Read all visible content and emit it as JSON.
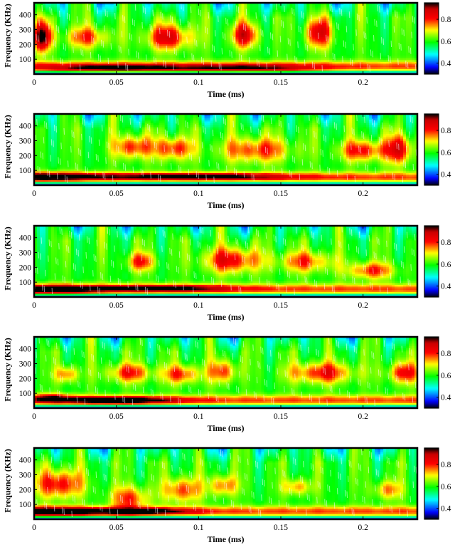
{
  "chart_data": [
    {
      "type": "heatmap",
      "panel": 1,
      "xlabel": "Time (ms)",
      "ylabel": "Frequency (KHz)",
      "xlim": [
        0,
        0.233
      ],
      "ylim": [
        0,
        480
      ],
      "xticks": [
        "0",
        "0.05",
        "0.1",
        "0.15",
        "0.2"
      ],
      "xtick_values": [
        0,
        0.05,
        0.1,
        0.15,
        0.2
      ],
      "yticks": [
        "100",
        "200",
        "300",
        "400"
      ],
      "ytick_values": [
        100,
        200,
        300,
        400
      ],
      "colorbar": {
        "ticks": [
          "0.4",
          "0.6",
          "0.8"
        ],
        "tick_values": [
          0.4,
          0.6,
          0.8
        ],
        "range": [
          0.3,
          0.95
        ]
      },
      "blobs": [
        {
          "t": 0.005,
          "f": 255,
          "st": 0.004,
          "sf": 70,
          "a": 0.34
        },
        {
          "t": 0.05,
          "f": 40,
          "st": 0.03,
          "sf": 18,
          "a": 0.25
        },
        {
          "t": 0.13,
          "f": 40,
          "st": 0.03,
          "sf": 18,
          "a": 0.2
        },
        {
          "t": 0.082,
          "f": 250,
          "st": 0.01,
          "sf": 60,
          "a": 0.25
        },
        {
          "t": 0.128,
          "f": 265,
          "st": 0.006,
          "sf": 60,
          "a": 0.25
        },
        {
          "t": 0.173,
          "f": 280,
          "st": 0.006,
          "sf": 70,
          "a": 0.25
        },
        {
          "t": 0.032,
          "f": 250,
          "st": 0.01,
          "sf": 50,
          "a": 0.18
        }
      ]
    },
    {
      "type": "heatmap",
      "panel": 2,
      "xlabel": "Time (ms)",
      "ylabel": "Frequency (KHz)",
      "xlim": [
        0,
        0.233
      ],
      "ylim": [
        0,
        480
      ],
      "xticks": [
        "0",
        "0.05",
        "0.1",
        "0.15",
        "0.2"
      ],
      "xtick_values": [
        0,
        0.05,
        0.1,
        0.15,
        0.2
      ],
      "yticks": [
        "100",
        "200",
        "300",
        "400"
      ],
      "ytick_values": [
        100,
        200,
        300,
        400
      ],
      "colorbar": {
        "ticks": [
          "0.4",
          "0.6",
          "0.8"
        ],
        "tick_values": [
          0.4,
          0.6,
          0.8
        ],
        "range": [
          0.3,
          0.95
        ]
      },
      "blobs": [
        {
          "t": 0.008,
          "f": 60,
          "st": 0.02,
          "sf": 18,
          "a": 0.3
        },
        {
          "t": 0.095,
          "f": 60,
          "st": 0.04,
          "sf": 15,
          "a": 0.25
        },
        {
          "t": 0.06,
          "f": 260,
          "st": 0.008,
          "sf": 55,
          "a": 0.22
        },
        {
          "t": 0.085,
          "f": 250,
          "st": 0.008,
          "sf": 55,
          "a": 0.22
        },
        {
          "t": 0.135,
          "f": 240,
          "st": 0.015,
          "sf": 60,
          "a": 0.2
        },
        {
          "t": 0.2,
          "f": 235,
          "st": 0.01,
          "sf": 50,
          "a": 0.22
        },
        {
          "t": 0.222,
          "f": 245,
          "st": 0.006,
          "sf": 70,
          "a": 0.24
        }
      ]
    },
    {
      "type": "heatmap",
      "panel": 3,
      "xlabel": "Time (ms)",
      "ylabel": "Frequency (KHz)",
      "xlim": [
        0,
        0.233
      ],
      "ylim": [
        0,
        480
      ],
      "xticks": [
        "0",
        "0.05",
        "0.1",
        "0.15",
        "0.2"
      ],
      "xtick_values": [
        0,
        0.05,
        0.1,
        0.15,
        0.2
      ],
      "yticks": [
        "100",
        "200",
        "300",
        "400"
      ],
      "ytick_values": [
        100,
        200,
        300,
        400
      ],
      "colorbar": {
        "ticks": [
          "0.4",
          "0.6",
          "0.8"
        ],
        "tick_values": [
          0.4,
          0.6,
          0.8
        ],
        "range": [
          0.3,
          0.95
        ]
      },
      "blobs": [
        {
          "t": 0.01,
          "f": 55,
          "st": 0.02,
          "sf": 20,
          "a": 0.3
        },
        {
          "t": 0.075,
          "f": 60,
          "st": 0.03,
          "sf": 16,
          "a": 0.25
        },
        {
          "t": 0.065,
          "f": 240,
          "st": 0.006,
          "sf": 45,
          "a": 0.2
        },
        {
          "t": 0.12,
          "f": 250,
          "st": 0.012,
          "sf": 60,
          "a": 0.24
        },
        {
          "t": 0.165,
          "f": 240,
          "st": 0.012,
          "sf": 50,
          "a": 0.18
        },
        {
          "t": 0.205,
          "f": 180,
          "st": 0.01,
          "sf": 40,
          "a": 0.2
        }
      ]
    },
    {
      "type": "heatmap",
      "panel": 4,
      "xlabel": "Time (ms)",
      "ylabel": "Frequency (KHz)",
      "xlim": [
        0,
        0.233
      ],
      "ylim": [
        0,
        480
      ],
      "xticks": [
        "0",
        "0.05",
        "0.1",
        "0.15",
        "0.2"
      ],
      "xtick_values": [
        0,
        0.05,
        0.1,
        0.15,
        0.2
      ],
      "yticks": [
        "100",
        "200",
        "300",
        "400"
      ],
      "ytick_values": [
        100,
        200,
        300,
        400
      ],
      "colorbar": {
        "ticks": [
          "0.4",
          "0.6",
          "0.8"
        ],
        "tick_values": [
          0.4,
          0.6,
          0.8
        ],
        "range": [
          0.3,
          0.95
        ]
      },
      "blobs": [
        {
          "t": 0.05,
          "f": 55,
          "st": 0.025,
          "sf": 16,
          "a": 0.3
        },
        {
          "t": 0.01,
          "f": 70,
          "st": 0.01,
          "sf": 20,
          "a": 0.2
        },
        {
          "t": 0.02,
          "f": 230,
          "st": 0.005,
          "sf": 40,
          "a": 0.18
        },
        {
          "t": 0.058,
          "f": 240,
          "st": 0.01,
          "sf": 45,
          "a": 0.2
        },
        {
          "t": 0.09,
          "f": 230,
          "st": 0.008,
          "sf": 45,
          "a": 0.2
        },
        {
          "t": 0.115,
          "f": 250,
          "st": 0.006,
          "sf": 55,
          "a": 0.2
        },
        {
          "t": 0.175,
          "f": 240,
          "st": 0.014,
          "sf": 50,
          "a": 0.22
        },
        {
          "t": 0.225,
          "f": 240,
          "st": 0.007,
          "sf": 50,
          "a": 0.22
        }
      ]
    },
    {
      "type": "heatmap",
      "panel": 5,
      "xlabel": "Time (ms)",
      "ylabel": "Frequency (KHz)",
      "xlim": [
        0,
        0.233
      ],
      "ylim": [
        0,
        480
      ],
      "xticks": [
        "0",
        "0.05",
        "0.1",
        "0.15",
        "0.2"
      ],
      "xtick_values": [
        0,
        0.05,
        0.1,
        0.15,
        0.2
      ],
      "yticks": [
        "100",
        "200",
        "300",
        "400"
      ],
      "ytick_values": [
        100,
        200,
        300,
        400
      ],
      "colorbar": {
        "ticks": [
          "0.4",
          "0.6",
          "0.8"
        ],
        "tick_values": [
          0.4,
          0.6,
          0.8
        ],
        "range": [
          0.3,
          0.95
        ]
      },
      "blobs": [
        {
          "t": 0.01,
          "f": 55,
          "st": 0.02,
          "sf": 20,
          "a": 0.32
        },
        {
          "t": 0.065,
          "f": 55,
          "st": 0.02,
          "sf": 14,
          "a": 0.28
        },
        {
          "t": 0.015,
          "f": 240,
          "st": 0.01,
          "sf": 70,
          "a": 0.24
        },
        {
          "t": 0.058,
          "f": 140,
          "st": 0.008,
          "sf": 60,
          "a": 0.2
        },
        {
          "t": 0.09,
          "f": 200,
          "st": 0.008,
          "sf": 60,
          "a": 0.2
        },
        {
          "t": 0.115,
          "f": 230,
          "st": 0.006,
          "sf": 50,
          "a": 0.18
        },
        {
          "t": 0.16,
          "f": 220,
          "st": 0.006,
          "sf": 40,
          "a": 0.16
        },
        {
          "t": 0.215,
          "f": 200,
          "st": 0.006,
          "sf": 45,
          "a": 0.16
        }
      ]
    }
  ],
  "colormap": [
    "#000000",
    "#0000ff",
    "#00ffff",
    "#00ff00",
    "#ffff00",
    "#ff0000",
    "#000000"
  ]
}
